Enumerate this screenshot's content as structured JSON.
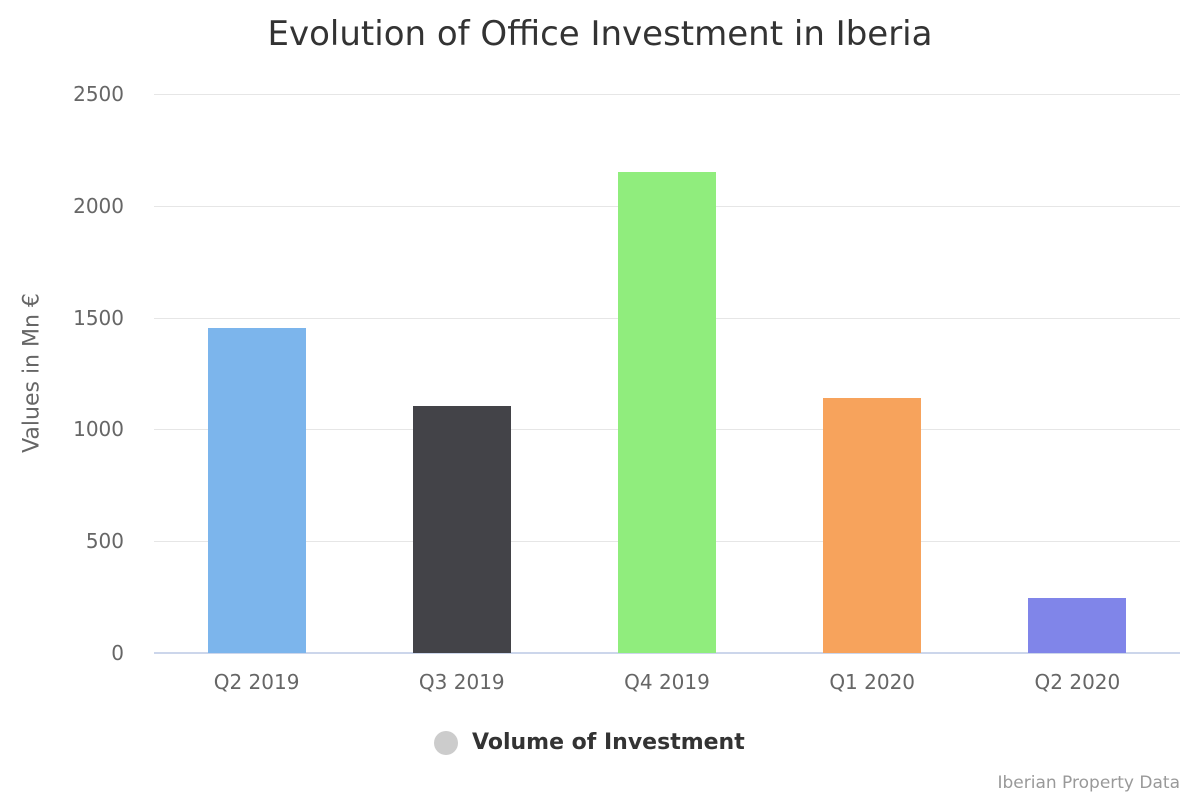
{
  "chart_data": {
    "type": "bar",
    "title": "Evolution of Office Investment in Iberia",
    "xlabel": "",
    "ylabel": "Values in Mn €",
    "categories": [
      "Q2 2019",
      "Q3 2019",
      "Q4 2019",
      "Q1 2020",
      "Q2 2020"
    ],
    "series": [
      {
        "name": "Volume of Investment",
        "values": [
          1453,
          1105,
          2151,
          1140,
          246
        ],
        "colors": [
          "#7cb5ec",
          "#434348",
          "#90ed7d",
          "#f7a35c",
          "#8085e9"
        ]
      }
    ],
    "yticks": [
      0,
      500,
      1000,
      1500,
      2000,
      2500
    ],
    "ylim": [
      0,
      2500
    ],
    "grid": true,
    "legend_position": "bottom-center",
    "credits": "Iberian Property Data"
  },
  "ytick_labels": [
    "0",
    "500",
    "1000",
    "1500",
    "2000",
    "2500"
  ],
  "legend": {
    "label": "Volume of Investment"
  },
  "credits": "Iberian Property Data"
}
